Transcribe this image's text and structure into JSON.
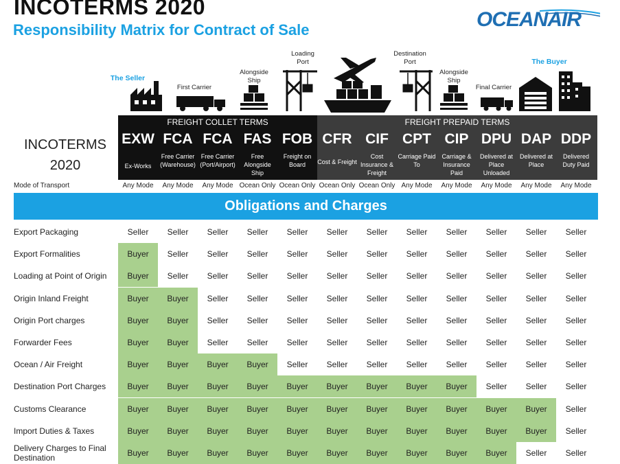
{
  "header": {
    "title": "INCOTERMS 2020",
    "subtitle": "Responsibility Matrix for Contract of Sale",
    "logo": "OCEANAIR"
  },
  "illustration": {
    "seller": "The Seller",
    "first_carrier": "First Carrier",
    "alongside_ship_1": "Alongside Ship",
    "loading_port": "Loading Port",
    "destination_port": "Destination Port",
    "alongside_ship_2": "Alongside Ship",
    "final_carrier": "Final Carrier",
    "buyer": "The Buyer",
    "icons": [
      "factory-icon",
      "truck-icon",
      "pallet-icon",
      "crane-icon",
      "airplane-icon",
      "cargo-ship-icon",
      "crane-icon",
      "pallet-icon",
      "truck-icon",
      "warehouse-icon",
      "buildings-icon"
    ]
  },
  "bars": {
    "collect": "FREIGHT COLLET TERMS",
    "prepaid": "FREIGHT  PREPAID TERMS"
  },
  "incoterms_label": "INCOTERMS 2020",
  "mode_label": "Mode of Transport",
  "terms": [
    {
      "code": "EXW",
      "desc": "Ex-Works",
      "mode": "Any Mode"
    },
    {
      "code": "FCA",
      "desc": "Free Carrier (Warehouse)",
      "mode": "Any Mode"
    },
    {
      "code": "FCA",
      "desc": "Free Carrier (Port/Airport)",
      "mode": "Any Mode"
    },
    {
      "code": "FAS",
      "desc": "Free Alongside Ship",
      "mode": "Ocean Only"
    },
    {
      "code": "FOB",
      "desc": "Freight on Board",
      "mode": "Ocean Only"
    },
    {
      "code": "CFR",
      "desc": "Cost & Freight",
      "mode": "Ocean Only"
    },
    {
      "code": "CIF",
      "desc": "Cost Insurance & Freight",
      "mode": "Ocean Only"
    },
    {
      "code": "CPT",
      "desc": "Carriage Paid To",
      "mode": "Any Mode"
    },
    {
      "code": "CIP",
      "desc": "Carriage & Insurance Paid",
      "mode": "Any Mode"
    },
    {
      "code": "DPU",
      "desc": "Delivered at Place Unloaded",
      "mode": "Any Mode"
    },
    {
      "code": "DAP",
      "desc": "Delivered at Place",
      "mode": "Any Mode"
    },
    {
      "code": "DDP",
      "desc": "Delivered Duty Paid",
      "mode": "Any Mode"
    }
  ],
  "banner": "Obligations and Charges",
  "rows": [
    {
      "label": "Export Packaging",
      "cells": [
        "Seller",
        "Seller",
        "Seller",
        "Seller",
        "Seller",
        "Seller",
        "Seller",
        "Seller",
        "Seller",
        "Seller",
        "Seller",
        "Seller"
      ]
    },
    {
      "label": "Export Formalities",
      "cells": [
        "Buyer",
        "Seller",
        "Seller",
        "Seller",
        "Seller",
        "Seller",
        "Seller",
        "Seller",
        "Seller",
        "Seller",
        "Seller",
        "Seller"
      ]
    },
    {
      "label": "Loading at Point of Origin",
      "cells": [
        "Buyer",
        "Seller",
        "Seller",
        "Seller",
        "Seller",
        "Seller",
        "Seller",
        "Seller",
        "Seller",
        "Seller",
        "Seller",
        "Seller"
      ]
    },
    {
      "label": "Origin Inland Freight",
      "cells": [
        "Buyer",
        "Buyer",
        "Seller",
        "Seller",
        "Seller",
        "Seller",
        "Seller",
        "Seller",
        "Seller",
        "Seller",
        "Seller",
        "Seller"
      ]
    },
    {
      "label": "Origin Port charges",
      "cells": [
        "Buyer",
        "Buyer",
        "Seller",
        "Seller",
        "Seller",
        "Seller",
        "Seller",
        "Seller",
        "Seller",
        "Seller",
        "Seller",
        "Seller"
      ]
    },
    {
      "label": "Forwarder Fees",
      "cells": [
        "Buyer",
        "Buyer",
        "Seller",
        "Seller",
        "Seller",
        "Seller",
        "Seller",
        "Seller",
        "Seller",
        "Seller",
        "Seller",
        "Seller"
      ]
    },
    {
      "label": "Ocean / Air Freight",
      "cells": [
        "Buyer",
        "Buyer",
        "Buyer",
        "Buyer",
        "Seller",
        "Seller",
        "Seller",
        "Seller",
        "Seller",
        "Seller",
        "Seller",
        "Seller"
      ]
    },
    {
      "label": "Destination Port Charges",
      "cells": [
        "Buyer",
        "Buyer",
        "Buyer",
        "Buyer",
        "Buyer",
        "Buyer",
        "Buyer",
        "Buyer",
        "Buyer",
        "Seller",
        "Seller",
        "Seller"
      ]
    },
    {
      "label": "Customs Clearance",
      "cells": [
        "Buyer",
        "Buyer",
        "Buyer",
        "Buyer",
        "Buyer",
        "Buyer",
        "Buyer",
        "Buyer",
        "Buyer",
        "Buyer",
        "Buyer",
        "Seller"
      ]
    },
    {
      "label": "Import Duties & Taxes",
      "cells": [
        "Buyer",
        "Buyer",
        "Buyer",
        "Buyer",
        "Buyer",
        "Buyer",
        "Buyer",
        "Buyer",
        "Buyer",
        "Buyer",
        "Buyer",
        "Seller"
      ]
    },
    {
      "label": "Delivery Charges to Final Destination",
      "cells": [
        "Buyer",
        "Buyer",
        "Buyer",
        "Buyer",
        "Buyer",
        "Buyer",
        "Buyer",
        "Buyer",
        "Buyer",
        "Buyer",
        "Seller",
        "Seller"
      ]
    }
  ],
  "colors": {
    "accent_blue": "#1ba1e2",
    "buyer_green": "#a9d08e",
    "collect_bar": "#111111",
    "prepaid_bar": "#3c3c3c",
    "logo_blue": "#1f6fb3"
  }
}
